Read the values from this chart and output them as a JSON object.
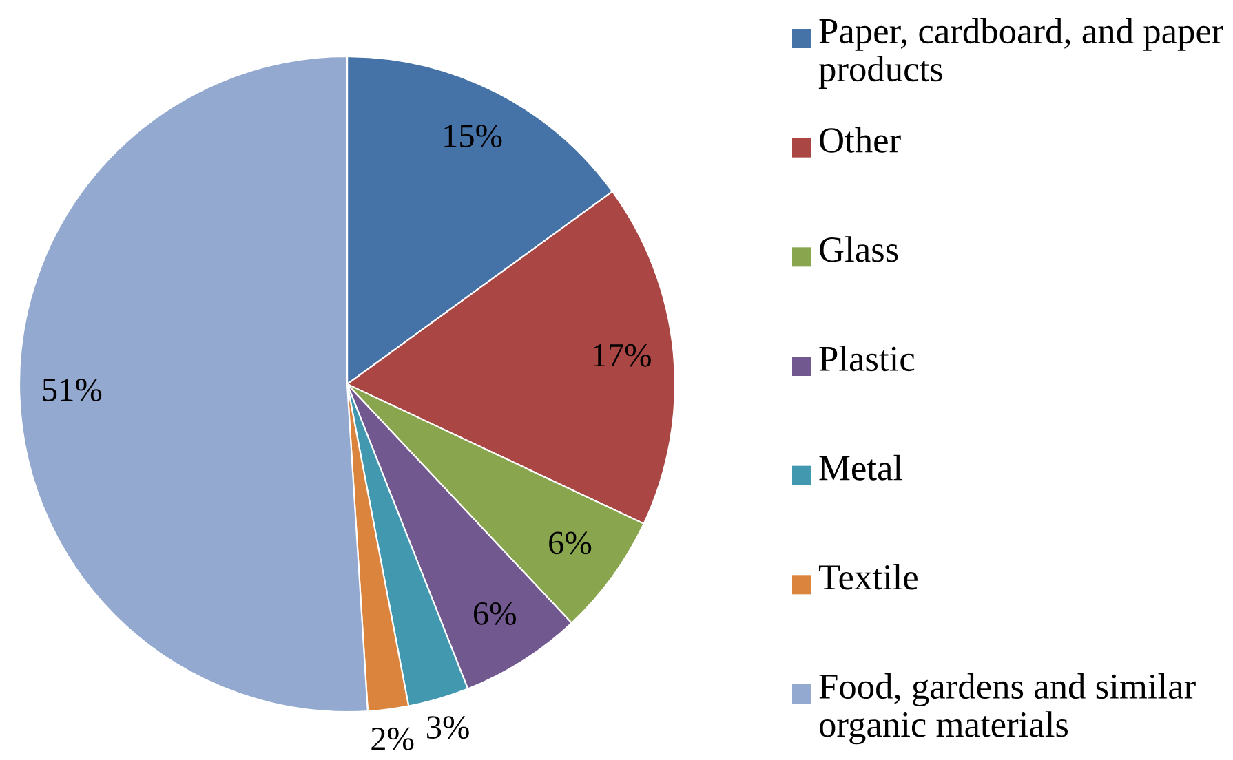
{
  "chart_data": {
    "type": "pie",
    "categories": [
      "Paper, cardboard, and paper products",
      "Other",
      "Glass",
      "Plastic",
      "Metal",
      "Textile",
      "Food, gardens and similar organic materials"
    ],
    "values": [
      15,
      17,
      6,
      6,
      3,
      2,
      51
    ],
    "value_labels": [
      "15%",
      "17%",
      "6%",
      "6%",
      "3%",
      "2%",
      "51%"
    ],
    "colors": [
      "#4572a7",
      "#aa4643",
      "#89a54e",
      "#71588f",
      "#4198af",
      "#db843d",
      "#93a9cf"
    ],
    "legend": "right"
  }
}
